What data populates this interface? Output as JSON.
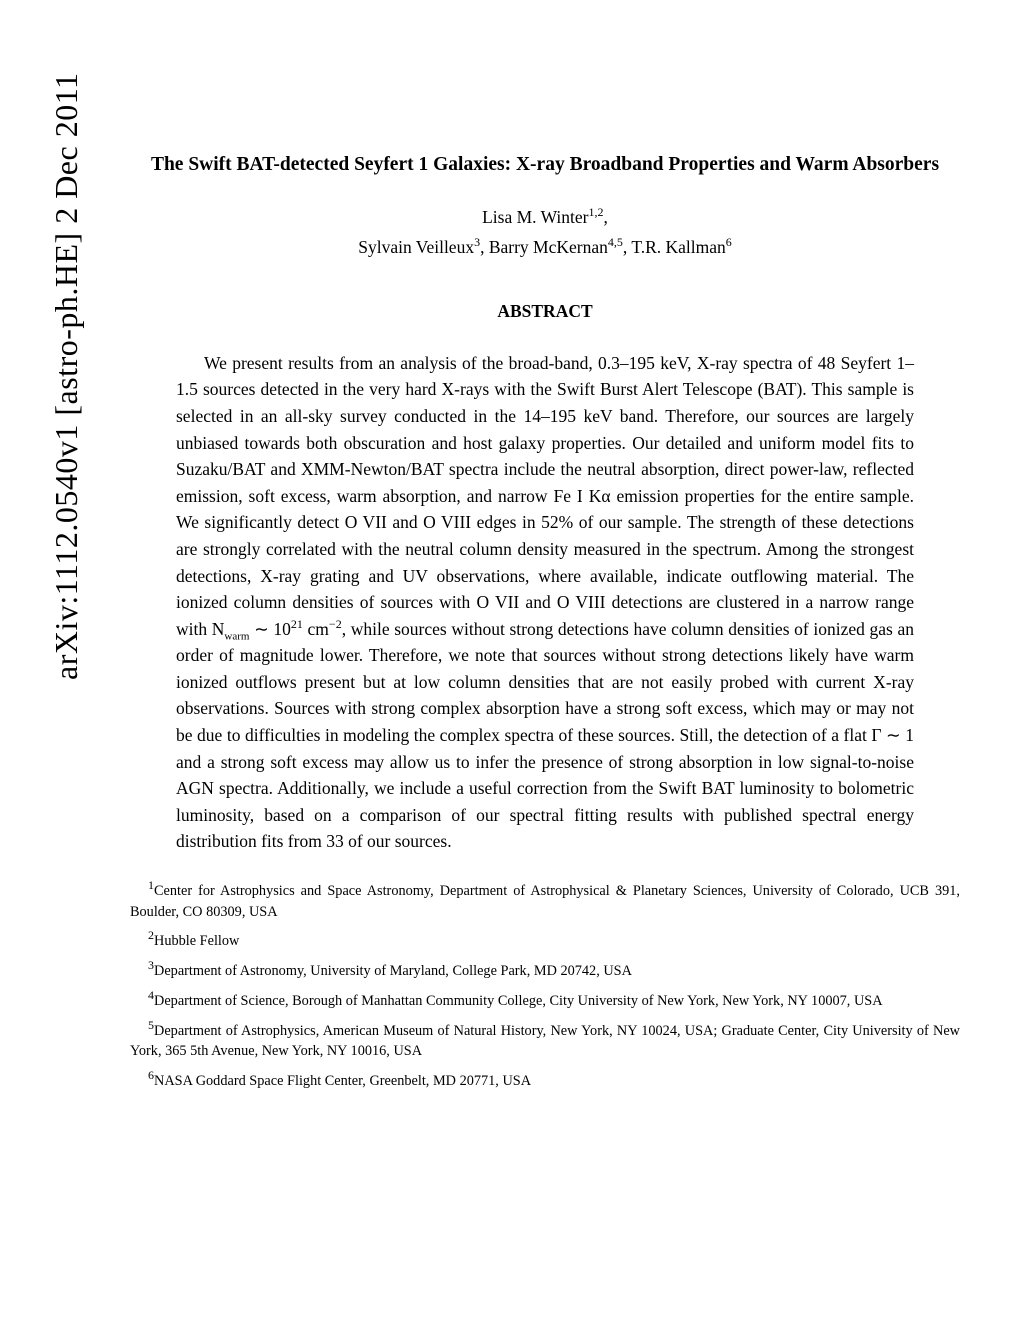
{
  "arxiv": "arXiv:1112.0540v1  [astro-ph.HE]  2 Dec 2011",
  "title": "The Swift BAT-detected Seyfert 1 Galaxies: X-ray Broadband Properties and Warm Absorbers",
  "authors_line1_name": "Lisa M. Winter",
  "authors_line1_aff": "1,2",
  "authors_line1_suffix": ",",
  "authors_line2_a": "Sylvain Veilleux",
  "authors_line2_a_aff": "3",
  "authors_line2_b": ", Barry McKernan",
  "authors_line2_b_aff": "4,5",
  "authors_line2_c": ", T.R. Kallman",
  "authors_line2_c_aff": "6",
  "abstract_heading": "ABSTRACT",
  "abstract_p1a": "We present results from an analysis of the broad-band, 0.3–195 keV, X-ray spectra of 48 Seyfert 1–1.5 sources detected in the very hard X-rays with the Swift Burst Alert Telescope (BAT). This sample is selected in an all-sky survey conducted in the 14–195 keV band. Therefore, our sources are largely unbiased towards both obscuration and host galaxy properties. Our detailed and uniform model fits to Suzaku/BAT and XMM-Newton/BAT spectra include the neutral absorption, direct power-law, reflected emission, soft excess, warm absorption, and narrow Fe I Kα emission properties for the entire sample. We significantly detect O VII and O VIII edges in 52% of our sample. The strength of these detections are strongly correlated with the neutral column density measured in the spectrum. Among the strongest detections, X-ray grating and UV observations, where available, indicate outflowing material. The ionized column densities of sources with O VII and O VIII detections are clustered in a narrow range with N",
  "abstract_nwarm": "warm",
  "abstract_p1b": " ∼ 10",
  "abstract_exp": "21",
  "abstract_unit": " cm",
  "abstract_neg2": "−2",
  "abstract_p1c": ", while sources without strong detections have column densities of ionized gas an order of magnitude lower. Therefore, we note that sources without strong detections likely have warm ionized outflows present but at low column densities that are not easily probed with current X-ray observations. Sources with strong complex absorption have a strong soft excess, which may or may not be due to difficulties in modeling the complex spectra of these sources. Still, the detection of a flat Γ ∼ 1 and a strong soft excess may allow us to infer the presence of strong absorption in low signal-to-noise AGN spectra. Additionally, we include a useful correction from the Swift BAT luminosity to bolometric luminosity, based on a comparison of our spectral fitting results with published spectral energy distribution fits from 33 of our sources.",
  "fn1n": "1",
  "fn1": "Center for Astrophysics and Space Astronomy, Department of Astrophysical & Planetary Sciences, University of Colorado, UCB 391, Boulder, CO 80309, USA",
  "fn2n": "2",
  "fn2": "Hubble Fellow",
  "fn3n": "3",
  "fn3": "Department of Astronomy, University of Maryland, College Park, MD 20742, USA",
  "fn4n": "4",
  "fn4": "Department of Science, Borough of Manhattan Community College, City University of New York, New York, NY 10007, USA",
  "fn5n": "5",
  "fn5": "Department of Astrophysics, American Museum of Natural History, New York, NY 10024, USA; Graduate Center, City University of New York, 365 5th Avenue, New York, NY 10016, USA",
  "fn6n": "6",
  "fn6": "NASA Goddard Space Flight Center, Greenbelt, MD 20771, USA"
}
